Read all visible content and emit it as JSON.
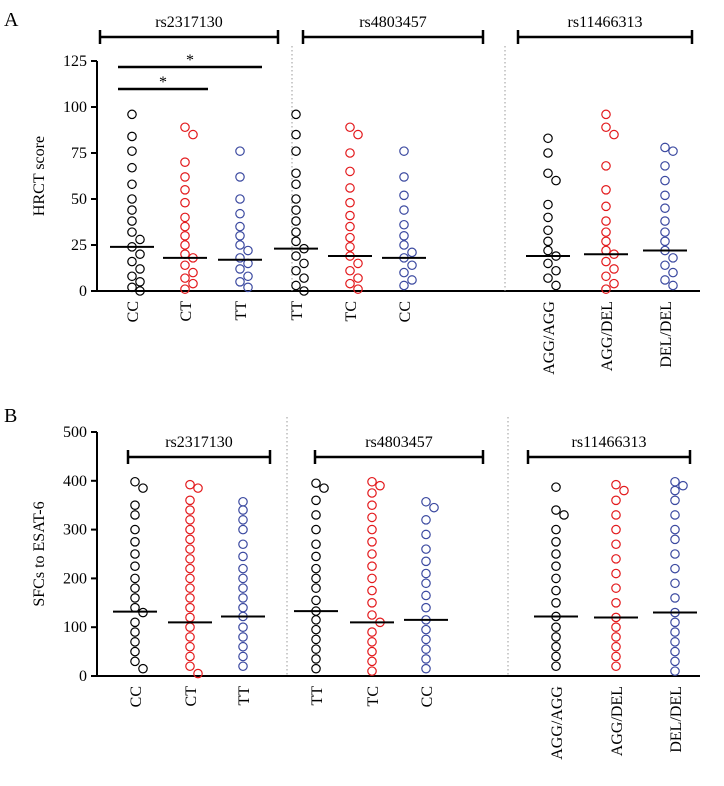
{
  "chart_data": [
    {
      "type": "strip",
      "panel": "A",
      "y_label": "HRCT score",
      "ylim": [
        0,
        125
      ],
      "yticks": [
        0,
        25,
        50,
        75,
        100,
        125
      ],
      "colors": [
        "#000000",
        "#e3191c",
        "#3b49a0"
      ],
      "annotations": [
        "*",
        "*"
      ],
      "groups": [
        {
          "label": "rs2317130",
          "categories": [
            "CC",
            "CT",
            "TT"
          ],
          "medians": [
            24,
            18,
            17
          ],
          "points": [
            [
              96,
              84,
              76,
              67,
              58,
              50,
              44,
              38,
              32,
              28,
              24,
              20,
              16,
              12,
              8,
              5,
              2,
              0
            ],
            [
              89,
              85,
              70,
              62,
              55,
              48,
              40,
              35,
              30,
              25,
              20,
              18,
              14,
              10,
              7,
              4,
              1
            ],
            [
              76,
              62,
              50,
              42,
              35,
              30,
              25,
              22,
              18,
              15,
              12,
              8,
              5,
              2
            ]
          ]
        },
        {
          "label": "rs4803457",
          "categories": [
            "TT",
            "TC",
            "CC"
          ],
          "medians": [
            23,
            19,
            18
          ],
          "points": [
            [
              96,
              85,
              76,
              64,
              58,
              50,
              44,
              38,
              32,
              27,
              23,
              19,
              15,
              11,
              7,
              3,
              0
            ],
            [
              89,
              85,
              75,
              65,
              56,
              48,
              41,
              35,
              29,
              24,
              19,
              15,
              11,
              7,
              4,
              1
            ],
            [
              76,
              62,
              52,
              44,
              36,
              30,
              25,
              21,
              18,
              14,
              10,
              6,
              3
            ]
          ]
        },
        {
          "label": "rs11466313",
          "categories": [
            "AGG/AGG",
            "AGG/DEL",
            "DEL/DEL"
          ],
          "medians": [
            19,
            20,
            22
          ],
          "points": [
            [
              83,
              75,
              64,
              60,
              47,
              40,
              33,
              27,
              22,
              19,
              15,
              11,
              7,
              3
            ],
            [
              96,
              89,
              85,
              68,
              55,
              46,
              38,
              32,
              27,
              22,
              20,
              16,
              12,
              8,
              4,
              1
            ],
            [
              78,
              76,
              68,
              60,
              52,
              45,
              38,
              32,
              27,
              22,
              18,
              14,
              10,
              6,
              3
            ]
          ]
        }
      ]
    },
    {
      "type": "strip",
      "panel": "B",
      "y_label": "SFCs to ESAT-6",
      "ylim": [
        0,
        500
      ],
      "yticks": [
        0,
        100,
        200,
        300,
        400,
        500
      ],
      "colors": [
        "#000000",
        "#e3191c",
        "#3b49a0"
      ],
      "annotations": [],
      "groups": [
        {
          "label": "rs2317130",
          "categories": [
            "CC",
            "CT",
            "TT"
          ],
          "medians": [
            132,
            110,
            122
          ],
          "points": [
            [
              398,
              385,
              350,
              330,
              300,
              275,
              250,
              225,
              200,
              180,
              160,
              140,
              130,
              110,
              90,
              70,
              50,
              30,
              15
            ],
            [
              392,
              385,
              360,
              340,
              320,
              300,
              280,
              260,
              240,
              220,
              200,
              180,
              160,
              140,
              120,
              100,
              80,
              60,
              40,
              20,
              5
            ],
            [
              357,
              340,
              320,
              300,
              270,
              245,
              220,
              200,
              180,
              160,
              140,
              122,
              100,
              80,
              60,
              40,
              20
            ]
          ]
        },
        {
          "label": "rs4803457",
          "categories": [
            "TT",
            "TC",
            "CC"
          ],
          "medians": [
            133,
            110,
            115
          ],
          "points": [
            [
              395,
              385,
              360,
              330,
              300,
              270,
              245,
              220,
              200,
              180,
              155,
              133,
              115,
              95,
              75,
              55,
              35,
              15
            ],
            [
              398,
              390,
              375,
              350,
              325,
              300,
              275,
              250,
              225,
              200,
              175,
              150,
              125,
              110,
              90,
              70,
              50,
              30,
              10
            ],
            [
              357,
              345,
              320,
              290,
              260,
              235,
              210,
              190,
              165,
              140,
              115,
              95,
              75,
              55,
              35,
              15
            ]
          ]
        },
        {
          "label": "rs11466313",
          "categories": [
            "AGG/AGG",
            "AGG/DEL",
            "DEL/DEL"
          ],
          "medians": [
            122,
            120,
            130
          ],
          "points": [
            [
              387,
              340,
              330,
              300,
              275,
              250,
              225,
              200,
              175,
              150,
              122,
              100,
              80,
              60,
              40,
              20
            ],
            [
              392,
              380,
              360,
              330,
              300,
              270,
              240,
              210,
              180,
              150,
              120,
              100,
              80,
              60,
              40,
              20
            ],
            [
              398,
              390,
              380,
              360,
              330,
              300,
              280,
              250,
              220,
              190,
              160,
              130,
              110,
              90,
              70,
              50,
              30,
              10
            ]
          ]
        }
      ]
    }
  ]
}
